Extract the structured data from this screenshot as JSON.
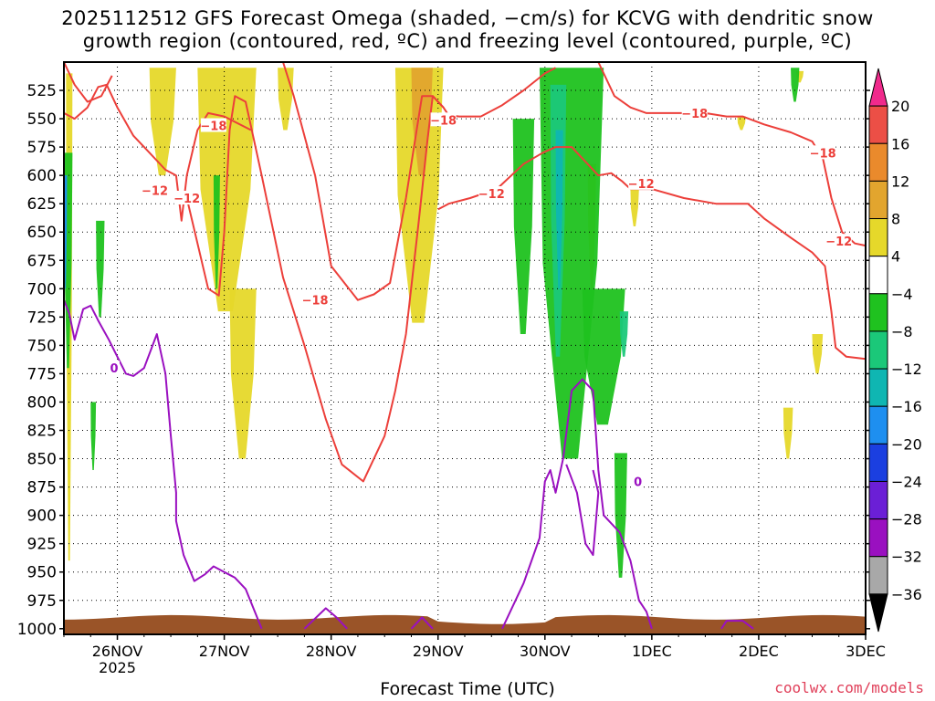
{
  "chart_data": {
    "type": "heatmap",
    "title_line_1": "2025112512 GFS Forecast Omega (shaded, −cm/s) for KCVG with dendritic snow",
    "title_line_2": "growth region (contoured, red, ºC) and freezing level (contoured, purple, ºC)",
    "xlabel": "Forecast Time (UTC)",
    "credit": "coolwx.com/models",
    "x_ticks": [
      {
        "label": "26NOV",
        "sub": "2025",
        "day": 1
      },
      {
        "label": "27NOV",
        "sub": "",
        "day": 2
      },
      {
        "label": "28NOV",
        "sub": "",
        "day": 3
      },
      {
        "label": "29NOV",
        "sub": "",
        "day": 4
      },
      {
        "label": "30NOV",
        "sub": "",
        "day": 5
      },
      {
        "label": "1DEC",
        "sub": "",
        "day": 6
      },
      {
        "label": "2DEC",
        "sub": "",
        "day": 7
      },
      {
        "label": "3DEC",
        "sub": "",
        "day": 8
      }
    ],
    "x_range_days": [
      0.5,
      8.0
    ],
    "y_ticks": [
      525,
      550,
      575,
      600,
      625,
      650,
      675,
      700,
      725,
      750,
      775,
      800,
      825,
      850,
      875,
      900,
      925,
      950,
      975,
      1000
    ],
    "y_range_hpa": [
      500,
      1005
    ],
    "colorbar": {
      "labels": [
        "20",
        "16",
        "12",
        "8",
        "4",
        "−4",
        "−8",
        "−12",
        "−16",
        "−20",
        "−24",
        "−28",
        "−32",
        "−36"
      ],
      "colors": [
        "#f02a8c",
        "#ec4f46",
        "#ea8a2c",
        "#e2a52e",
        "#e6d82a",
        "#ffffff",
        "#1fc21f",
        "#1bc879",
        "#0fb6b2",
        "#1e8ff0",
        "#1b3fe0",
        "#6b1fd6",
        "#9a10c0",
        "#a8a8a8",
        "#000000"
      ]
    },
    "omega_regions": [
      {
        "color": "#e6d82a",
        "day0": 0.52,
        "day1": 0.58,
        "p0": 510,
        "p1": 940
      },
      {
        "color": "#e6d82a",
        "day0": 1.3,
        "day1": 1.55,
        "p0": 505,
        "p1": 600
      },
      {
        "color": "#e6d82a",
        "day0": 1.75,
        "day1": 2.3,
        "p0": 505,
        "p1": 720
      },
      {
        "color": "#e6d82a",
        "day0": 2.05,
        "day1": 2.3,
        "p0": 700,
        "p1": 850
      },
      {
        "color": "#e6d82a",
        "day0": 2.5,
        "day1": 2.65,
        "p0": 505,
        "p1": 560
      },
      {
        "color": "#e6d82a",
        "day0": 3.6,
        "day1": 4.05,
        "p0": 505,
        "p1": 730
      },
      {
        "color": "#e2a52e",
        "day0": 3.75,
        "day1": 3.95,
        "p0": 505,
        "p1": 600
      },
      {
        "color": "#e6d82a",
        "day0": 5.4,
        "day1": 5.48,
        "p0": 590,
        "p1": 700
      },
      {
        "color": "#e6d82a",
        "day0": 5.8,
        "day1": 5.88,
        "p0": 612,
        "p1": 645
      },
      {
        "color": "#e6d82a",
        "day0": 7.35,
        "day1": 7.42,
        "p0": 508,
        "p1": 518
      },
      {
        "color": "#e6d82a",
        "day0": 7.5,
        "day1": 7.6,
        "p0": 740,
        "p1": 775
      },
      {
        "color": "#e6d82a",
        "day0": 7.23,
        "day1": 7.32,
        "p0": 805,
        "p1": 850
      },
      {
        "color": "#e6d82a",
        "day0": 6.8,
        "day1": 6.88,
        "p0": 548,
        "p1": 560
      },
      {
        "color": "#1fc21f",
        "day0": 0.5,
        "day1": 0.58,
        "p0": 580,
        "p1": 770
      },
      {
        "color": "#1fc21f",
        "day0": 0.8,
        "day1": 0.88,
        "p0": 640,
        "p1": 725
      },
      {
        "color": "#1fc21f",
        "day0": 0.75,
        "day1": 0.8,
        "p0": 800,
        "p1": 860
      },
      {
        "color": "#1fc21f",
        "day0": 1.9,
        "day1": 1.96,
        "p0": 600,
        "p1": 700
      },
      {
        "color": "#1fc21f",
        "day0": 4.7,
        "day1": 4.9,
        "p0": 550,
        "p1": 740
      },
      {
        "color": "#1fc21f",
        "day0": 4.95,
        "day1": 5.55,
        "p0": 505,
        "p1": 850
      },
      {
        "color": "#1fc21f",
        "day0": 5.35,
        "day1": 5.75,
        "p0": 700,
        "p1": 820
      },
      {
        "color": "#1fc21f",
        "day0": 5.65,
        "day1": 5.77,
        "p0": 845,
        "p1": 955
      },
      {
        "color": "#1fc21f",
        "day0": 7.3,
        "day1": 7.38,
        "p0": 505,
        "p1": 535
      },
      {
        "color": "#1bc879",
        "day0": 5.05,
        "day1": 5.2,
        "p0": 520,
        "p1": 760
      },
      {
        "color": "#1bc879",
        "day0": 5.7,
        "day1": 5.78,
        "p0": 720,
        "p1": 760
      },
      {
        "color": "#0fb6b2",
        "day0": 5.1,
        "day1": 5.17,
        "p0": 560,
        "p1": 700
      },
      {
        "color": "#1e8ff0",
        "day0": 0.5,
        "day1": 0.53,
        "p0": 600,
        "p1": 700
      }
    ],
    "dgz_contours": [
      {
        "name": "-18 upper",
        "points": [
          [
            0.5,
            545
          ],
          [
            0.6,
            550
          ],
          [
            0.72,
            540
          ],
          [
            0.82,
            522
          ],
          [
            0.9,
            520
          ],
          [
            1.0,
            540
          ],
          [
            1.15,
            565
          ],
          [
            1.3,
            580
          ],
          [
            1.45,
            595
          ],
          [
            1.55,
            600
          ],
          [
            1.6,
            640
          ],
          [
            1.65,
            600
          ],
          [
            1.75,
            560
          ],
          [
            1.85,
            545
          ],
          [
            2.0,
            548
          ],
          [
            2.25,
            560
          ]
        ]
      },
      {
        "name": "-12 dgz",
        "points": [
          [
            0.5,
            500
          ],
          [
            0.6,
            520
          ],
          [
            0.72,
            535
          ],
          [
            0.85,
            530
          ],
          [
            0.95,
            512
          ]
        ]
      },
      {
        "name": "-12 loop",
        "points": [
          [
            1.65,
            620
          ],
          [
            1.85,
            700
          ],
          [
            1.95,
            706
          ],
          [
            2.0,
            650
          ],
          [
            2.05,
            560
          ],
          [
            2.1,
            530
          ],
          [
            2.2,
            535
          ],
          [
            2.35,
            600
          ],
          [
            2.55,
            690
          ],
          [
            2.75,
            750
          ],
          [
            2.95,
            815
          ],
          [
            3.1,
            855
          ],
          [
            3.3,
            870
          ],
          [
            3.5,
            830
          ],
          [
            3.6,
            790
          ],
          [
            3.7,
            740
          ],
          [
            3.82,
            640
          ],
          [
            3.9,
            570
          ],
          [
            3.95,
            530
          ],
          [
            4.05,
            540
          ],
          [
            4.1,
            547
          ],
          [
            4.2,
            548
          ],
          [
            4.4,
            548
          ],
          [
            4.6,
            538
          ],
          [
            4.8,
            525
          ],
          [
            5.0,
            510
          ],
          [
            5.1,
            505
          ]
        ]
      },
      {
        "name": "-18 mid",
        "points": [
          [
            2.55,
            500
          ],
          [
            2.65,
            530
          ],
          [
            2.85,
            600
          ],
          [
            3.0,
            680
          ],
          [
            3.25,
            710
          ],
          [
            3.4,
            705
          ],
          [
            3.55,
            695
          ],
          [
            3.7,
            620
          ],
          [
            3.8,
            560
          ],
          [
            3.85,
            530
          ],
          [
            3.95,
            530
          ],
          [
            4.05,
            540
          ]
        ]
      },
      {
        "name": "-12 lower",
        "points": [
          [
            4.0,
            630
          ],
          [
            4.1,
            625
          ],
          [
            4.3,
            620
          ],
          [
            4.55,
            612
          ],
          [
            4.8,
            590
          ],
          [
            4.98,
            580
          ],
          [
            5.1,
            575
          ],
          [
            5.25,
            575
          ],
          [
            5.4,
            590
          ],
          [
            5.5,
            600
          ],
          [
            5.62,
            598
          ],
          [
            5.72,
            605
          ],
          [
            5.8,
            612
          ],
          [
            6.0,
            612
          ],
          [
            6.3,
            620
          ],
          [
            6.6,
            625
          ],
          [
            6.9,
            625
          ],
          [
            7.05,
            638
          ],
          [
            7.3,
            655
          ],
          [
            7.5,
            668
          ],
          [
            7.62,
            680
          ],
          [
            7.68,
            720
          ],
          [
            7.72,
            752
          ],
          [
            7.82,
            760
          ],
          [
            8.0,
            762
          ]
        ]
      },
      {
        "name": "-18 right",
        "points": [
          [
            5.5,
            500
          ],
          [
            5.65,
            530
          ],
          [
            5.8,
            540
          ],
          [
            5.95,
            545
          ],
          [
            6.25,
            545
          ],
          [
            6.5,
            545
          ],
          [
            6.7,
            548
          ],
          [
            6.85,
            548
          ],
          [
            7.05,
            555
          ],
          [
            7.3,
            562
          ],
          [
            7.5,
            570
          ],
          [
            7.6,
            585
          ],
          [
            7.68,
            620
          ],
          [
            7.78,
            650
          ],
          [
            7.9,
            660
          ],
          [
            8.0,
            662
          ]
        ]
      }
    ],
    "freezing_contours": [
      {
        "name": "0 left",
        "points": [
          [
            0.5,
            710
          ],
          [
            0.55,
            722
          ],
          [
            0.6,
            745
          ],
          [
            0.68,
            718
          ],
          [
            0.75,
            715
          ],
          [
            0.82,
            728
          ],
          [
            0.92,
            745
          ],
          [
            1.0,
            760
          ],
          [
            1.08,
            775
          ],
          [
            1.15,
            777
          ],
          [
            1.25,
            770
          ],
          [
            1.37,
            740
          ],
          [
            1.45,
            775
          ],
          [
            1.5,
            830
          ],
          [
            1.55,
            880
          ],
          [
            1.55,
            905
          ],
          [
            1.62,
            935
          ],
          [
            1.72,
            958
          ],
          [
            1.82,
            952
          ],
          [
            1.9,
            945
          ],
          [
            2.1,
            955
          ],
          [
            2.2,
            965
          ],
          [
            2.35,
            1000
          ]
        ]
      },
      {
        "name": "0 mid",
        "points": [
          [
            2.75,
            1000
          ],
          [
            2.95,
            982
          ],
          [
            3.05,
            990
          ],
          [
            3.15,
            1000
          ]
        ]
      },
      {
        "name": "0 bump",
        "points": [
          [
            3.75,
            1000
          ],
          [
            3.85,
            990
          ],
          [
            3.95,
            1000
          ]
        ]
      },
      {
        "name": "0 right",
        "points": [
          [
            4.6,
            1000
          ],
          [
            4.8,
            960
          ],
          [
            4.95,
            920
          ],
          [
            5.0,
            870
          ],
          [
            5.05,
            860
          ],
          [
            5.1,
            880
          ],
          [
            5.17,
            850
          ],
          [
            5.25,
            790
          ],
          [
            5.35,
            780
          ],
          [
            5.45,
            790
          ],
          [
            5.5,
            860
          ],
          [
            5.55,
            900
          ],
          [
            5.7,
            915
          ],
          [
            5.8,
            940
          ],
          [
            5.88,
            975
          ],
          [
            5.95,
            985
          ],
          [
            6.0,
            1000
          ]
        ]
      },
      {
        "name": "0 right inner",
        "points": [
          [
            5.2,
            855
          ],
          [
            5.3,
            880
          ],
          [
            5.38,
            925
          ],
          [
            5.45,
            935
          ],
          [
            5.5,
            880
          ],
          [
            5.45,
            860
          ]
        ]
      },
      {
        "name": "0 far",
        "points": [
          [
            6.65,
            1000
          ],
          [
            6.7,
            993
          ],
          [
            6.85,
            993
          ],
          [
            6.95,
            1000
          ]
        ]
      }
    ],
    "contour_labels": [
      {
        "text": "−18",
        "day": 1.9,
        "p": 556,
        "color": "#ec3f3a"
      },
      {
        "text": "−12",
        "day": 1.35,
        "p": 613,
        "color": "#ec3f3a"
      },
      {
        "text": "−12",
        "day": 1.65,
        "p": 620,
        "color": "#ec3f3a"
      },
      {
        "text": "−18",
        "day": 4.05,
        "p": 551,
        "color": "#ec3f3a"
      },
      {
        "text": "−12",
        "day": 4.5,
        "p": 616,
        "color": "#ec3f3a"
      },
      {
        "text": "−18",
        "day": 2.85,
        "p": 710,
        "color": "#ec3f3a"
      },
      {
        "text": "−12",
        "day": 5.9,
        "p": 607,
        "color": "#ec3f3a"
      },
      {
        "text": "−18",
        "day": 6.4,
        "p": 545,
        "color": "#ec3f3a"
      },
      {
        "text": "−18",
        "day": 7.6,
        "p": 580,
        "color": "#ec3f3a"
      },
      {
        "text": "−12",
        "day": 7.75,
        "p": 658,
        "color": "#ec3f3a"
      },
      {
        "text": "0",
        "day": 0.97,
        "p": 770,
        "color": "#9a10c0"
      },
      {
        "text": "0",
        "day": 5.87,
        "p": 870,
        "color": "#9a10c0"
      }
    ]
  }
}
